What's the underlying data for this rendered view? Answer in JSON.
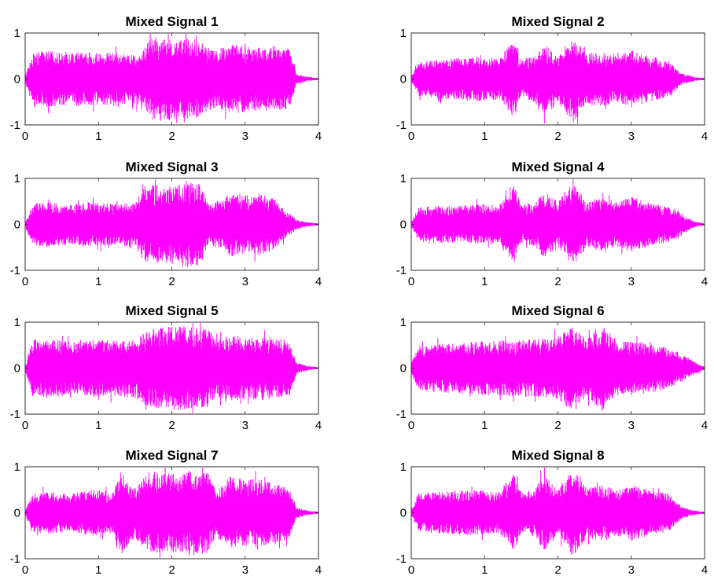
{
  "figure": {
    "background": "#ffffff",
    "signal_color": "#ff00ff",
    "axes_color": "#262626"
  },
  "chart_data": [
    {
      "type": "line",
      "title": "Mixed Signal 1",
      "xlabel": "",
      "ylabel": "",
      "xlim": [
        0,
        4
      ],
      "ylim": [
        -1,
        1
      ],
      "xticks": [
        "0",
        "1",
        "2",
        "3",
        "4"
      ],
      "yticks": [
        "-1",
        "0",
        "1"
      ],
      "grid": false,
      "legend": "none",
      "series": [
        {
          "x": [
            0,
            0.1,
            0.3,
            0.5,
            0.8,
            1.0,
            1.2,
            1.4,
            1.6,
            1.7,
            1.9,
            2.1,
            2.3,
            2.5,
            2.6,
            2.8,
            3.0,
            3.2,
            3.4,
            3.6,
            3.7,
            3.85,
            4.0
          ],
          "y": [
            0.08,
            0.55,
            0.62,
            0.58,
            0.6,
            0.55,
            0.6,
            0.52,
            0.6,
            0.9,
            0.92,
            0.88,
            0.9,
            0.7,
            0.62,
            0.78,
            0.72,
            0.68,
            0.72,
            0.66,
            0.12,
            0.05,
            0.02
          ]
        }
      ]
    },
    {
      "type": "line",
      "title": "Mixed Signal 2",
      "xlabel": "",
      "ylabel": "",
      "xlim": [
        0,
        4
      ],
      "ylim": [
        -1,
        1
      ],
      "xticks": [
        "0",
        "1",
        "2",
        "3",
        "4"
      ],
      "yticks": [
        "-1",
        "0",
        "1"
      ],
      "grid": false,
      "legend": "none",
      "series": [
        {
          "x": [
            0,
            0.1,
            0.3,
            0.6,
            0.9,
            1.2,
            1.4,
            1.5,
            1.7,
            1.8,
            2.0,
            2.2,
            2.4,
            2.6,
            2.8,
            3.0,
            3.3,
            3.5,
            3.7,
            3.85,
            4.0
          ],
          "y": [
            0.05,
            0.38,
            0.42,
            0.45,
            0.48,
            0.45,
            0.85,
            0.4,
            0.55,
            0.8,
            0.5,
            0.98,
            0.55,
            0.6,
            0.5,
            0.62,
            0.48,
            0.4,
            0.12,
            0.05,
            0.02
          ]
        }
      ]
    },
    {
      "type": "line",
      "title": "Mixed Signal 3",
      "xlabel": "",
      "ylabel": "",
      "xlim": [
        0,
        4
      ],
      "ylim": [
        -1,
        1
      ],
      "xticks": [
        "0",
        "1",
        "2",
        "3",
        "4"
      ],
      "yticks": [
        "-1",
        "0",
        "1"
      ],
      "grid": false,
      "legend": "none",
      "series": [
        {
          "x": [
            0,
            0.1,
            0.3,
            0.6,
            0.9,
            1.2,
            1.5,
            1.6,
            1.8,
            2.0,
            2.2,
            2.4,
            2.5,
            2.7,
            2.8,
            3.0,
            3.2,
            3.4,
            3.7,
            3.85,
            4.0
          ],
          "y": [
            0.05,
            0.45,
            0.5,
            0.42,
            0.5,
            0.45,
            0.5,
            0.82,
            0.88,
            0.85,
            0.95,
            0.9,
            0.45,
            0.55,
            0.7,
            0.65,
            0.68,
            0.55,
            0.1,
            0.05,
            0.02
          ]
        }
      ]
    },
    {
      "type": "line",
      "title": "Mixed Signal 4",
      "xlabel": "",
      "ylabel": "",
      "xlim": [
        0,
        4
      ],
      "ylim": [
        -1,
        1
      ],
      "xticks": [
        "0",
        "1",
        "2",
        "3",
        "4"
      ],
      "yticks": [
        "-1",
        "0",
        "1"
      ],
      "grid": false,
      "legend": "none",
      "series": [
        {
          "x": [
            0,
            0.1,
            0.3,
            0.6,
            0.9,
            1.2,
            1.4,
            1.5,
            1.7,
            1.8,
            2.0,
            2.2,
            2.4,
            2.6,
            2.8,
            3.0,
            3.3,
            3.6,
            3.8,
            3.9,
            4.0
          ],
          "y": [
            0.05,
            0.38,
            0.42,
            0.4,
            0.45,
            0.42,
            0.88,
            0.4,
            0.5,
            0.75,
            0.48,
            0.92,
            0.5,
            0.6,
            0.48,
            0.62,
            0.45,
            0.35,
            0.12,
            0.05,
            0.02
          ]
        }
      ]
    },
    {
      "type": "line",
      "title": "Mixed Signal 5",
      "xlabel": "",
      "ylabel": "",
      "xlim": [
        0,
        4
      ],
      "ylim": [
        -1,
        1
      ],
      "xticks": [
        "0",
        "1",
        "2",
        "3",
        "4"
      ],
      "yticks": [
        "-1",
        "0",
        "1"
      ],
      "grid": false,
      "legend": "none",
      "series": [
        {
          "x": [
            0,
            0.1,
            0.3,
            0.6,
            0.9,
            1.2,
            1.5,
            1.7,
            1.9,
            2.1,
            2.3,
            2.5,
            2.6,
            2.8,
            3.0,
            3.2,
            3.4,
            3.6,
            3.7,
            3.85,
            4.0
          ],
          "y": [
            0.05,
            0.62,
            0.65,
            0.6,
            0.62,
            0.6,
            0.65,
            0.85,
            0.9,
            0.92,
            0.88,
            0.85,
            0.62,
            0.72,
            0.68,
            0.7,
            0.66,
            0.64,
            0.12,
            0.05,
            0.02
          ]
        }
      ]
    },
    {
      "type": "line",
      "title": "Mixed Signal 6",
      "xlabel": "",
      "ylabel": "",
      "xlim": [
        0,
        4
      ],
      "ylim": [
        -1,
        1
      ],
      "xticks": [
        "0",
        "1",
        "2",
        "3",
        "4"
      ],
      "yticks": [
        "-1",
        "0",
        "1"
      ],
      "grid": false,
      "legend": "none",
      "series": [
        {
          "x": [
            0,
            0.1,
            0.3,
            0.6,
            0.9,
            1.2,
            1.5,
            1.8,
            2.0,
            2.2,
            2.4,
            2.6,
            2.8,
            3.0,
            3.2,
            3.4,
            3.6,
            3.8,
            3.9,
            4.0
          ],
          "y": [
            0.1,
            0.5,
            0.52,
            0.55,
            0.58,
            0.6,
            0.62,
            0.65,
            0.7,
            0.9,
            0.65,
            0.95,
            0.62,
            0.6,
            0.55,
            0.5,
            0.38,
            0.2,
            0.1,
            0.03
          ]
        }
      ]
    },
    {
      "type": "line",
      "title": "Mixed Signal 7",
      "xlabel": "",
      "ylabel": "",
      "xlim": [
        0,
        4
      ],
      "ylim": [
        -1,
        1
      ],
      "xticks": [
        "0",
        "1",
        "2",
        "3",
        "4"
      ],
      "yticks": [
        "-1",
        "0",
        "1"
      ],
      "grid": false,
      "legend": "none",
      "series": [
        {
          "x": [
            0,
            0.1,
            0.3,
            0.6,
            0.9,
            1.2,
            1.3,
            1.5,
            1.7,
            1.9,
            2.1,
            2.3,
            2.5,
            2.6,
            2.8,
            3.0,
            3.2,
            3.4,
            3.6,
            3.7,
            3.85,
            4.0
          ],
          "y": [
            0.05,
            0.42,
            0.48,
            0.4,
            0.5,
            0.45,
            0.9,
            0.55,
            0.9,
            0.88,
            0.85,
            0.95,
            0.88,
            0.5,
            0.8,
            0.72,
            0.75,
            0.65,
            0.58,
            0.12,
            0.05,
            0.02
          ]
        }
      ]
    },
    {
      "type": "line",
      "title": "Mixed Signal 8",
      "xlabel": "",
      "ylabel": "",
      "xlim": [
        0,
        4
      ],
      "ylim": [
        -1,
        1
      ],
      "xticks": [
        "0",
        "1",
        "2",
        "3",
        "4"
      ],
      "yticks": [
        "-1",
        "0",
        "1"
      ],
      "grid": false,
      "legend": "none",
      "series": [
        {
          "x": [
            0,
            0.1,
            0.3,
            0.6,
            0.9,
            1.2,
            1.4,
            1.5,
            1.7,
            1.8,
            2.0,
            2.2,
            2.4,
            2.6,
            2.8,
            3.0,
            3.3,
            3.5,
            3.7,
            3.85,
            4.0
          ],
          "y": [
            0.05,
            0.42,
            0.45,
            0.48,
            0.5,
            0.45,
            0.88,
            0.42,
            0.55,
            0.85,
            0.5,
            0.95,
            0.55,
            0.6,
            0.5,
            0.62,
            0.48,
            0.42,
            0.12,
            0.05,
            0.02
          ]
        }
      ]
    }
  ]
}
